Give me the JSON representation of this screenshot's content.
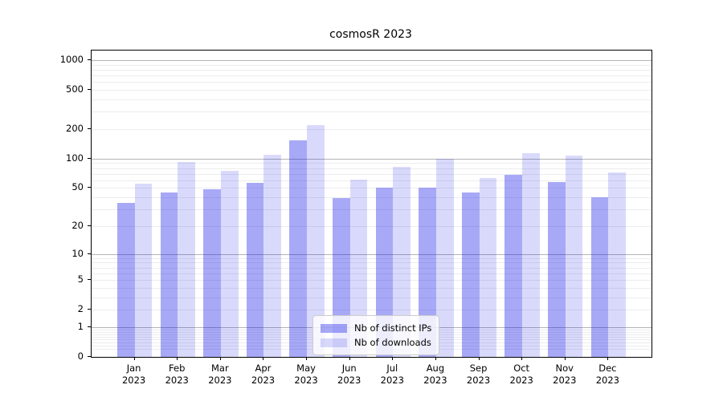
{
  "chart_data": {
    "type": "bar",
    "title": "cosmosR 2023",
    "categories": [
      "Jan 2023",
      "Feb 2023",
      "Mar 2023",
      "Apr 2023",
      "May 2023",
      "Jun 2023",
      "Jul 2023",
      "Aug 2023",
      "Sep 2023",
      "Oct 2023",
      "Nov 2023",
      "Dec 2023"
    ],
    "series": [
      {
        "name": "Nb of distinct IPs",
        "color": "rgba(20,22,230,0.37)",
        "values": [
          35,
          45,
          49,
          57,
          155,
          39,
          50,
          50,
          45,
          68,
          58,
          40
        ]
      },
      {
        "name": "Nb of downloads",
        "color": "rgba(20,22,230,0.16)",
        "values": [
          56,
          93,
          75,
          109,
          220,
          61,
          82,
          100,
          63,
          113,
          107,
          73
        ]
      }
    ],
    "xlabel": "",
    "ylabel": "",
    "yscale": "log1p",
    "ylim": [
      0,
      1253
    ],
    "yticks": [
      0,
      1,
      2,
      5,
      10,
      20,
      50,
      100,
      200,
      500,
      1000
    ],
    "grid": true,
    "minor_grid": true,
    "legend_position": "lower center"
  },
  "colors": {
    "major_grid": "#b4b4b4",
    "minor_grid": "#ececec",
    "spine": "#000000",
    "background": "#ffffff"
  }
}
